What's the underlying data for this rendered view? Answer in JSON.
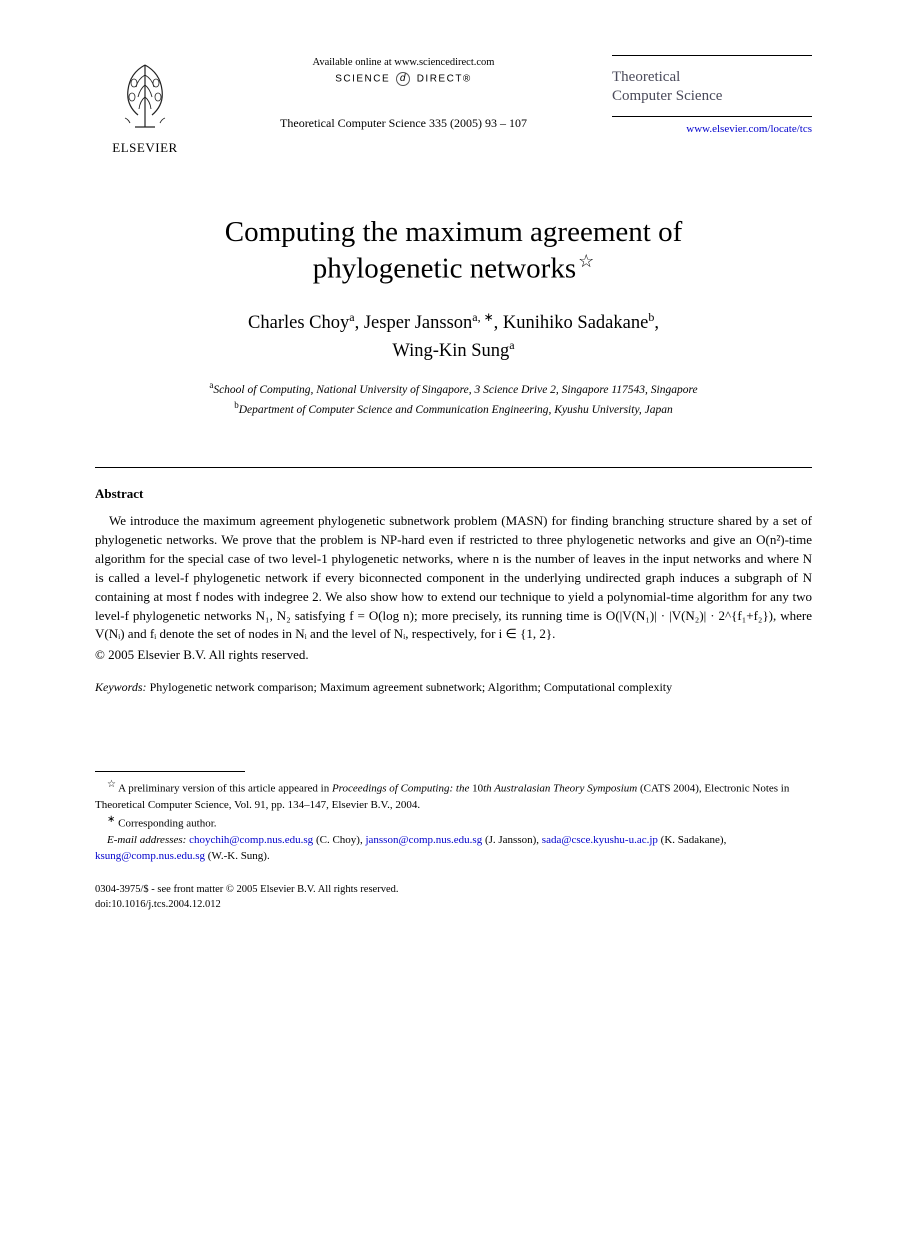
{
  "header": {
    "elsevier_label": "ELSEVIER",
    "available_line": "Available online at www.sciencedirect.com",
    "sciencedirect_left": "SCIENCE",
    "sciencedirect_right": "DIRECT®",
    "journal_ref": "Theoretical Computer Science 335 (2005) 93 – 107",
    "journal_name_line1": "Theoretical",
    "journal_name_line2": "Computer Science",
    "journal_url": "www.elsevier.com/locate/tcs"
  },
  "title": {
    "line1": "Computing the maximum agreement of",
    "line2": "phylogenetic networks",
    "star": "☆"
  },
  "authors": {
    "a1_name": "Charles Choy",
    "a1_sup": "a",
    "a2_name": "Jesper Jansson",
    "a2_sup": "a, ∗",
    "a3_name": "Kunihiko Sadakane",
    "a3_sup": "b",
    "a4_name": "Wing-Kin Sung",
    "a4_sup": "a"
  },
  "affiliations": {
    "a_sup": "a",
    "a_text": "School of Computing, National University of Singapore, 3 Science Drive 2, Singapore 117543, Singapore",
    "b_sup": "b",
    "b_text": "Department of Computer Science and Communication Engineering, Kyushu University, Japan"
  },
  "abstract": {
    "heading": "Abstract",
    "body_html": "We introduce the maximum agreement phylogenetic subnetwork problem (MASN) for finding branching structure shared by a set of phylogenetic networks. We prove that the problem is NP-hard even if restricted to three phylogenetic networks and give an O(n²)-time algorithm for the special case of two level-1 phylogenetic networks, where n is the number of leaves in the input networks and where N is called a level-f phylogenetic network if every biconnected component in the underlying undirected graph induces a subgraph of N containing at most f nodes with indegree 2. We also show how to extend our technique to yield a polynomial-time algorithm for any two level-f phylogenetic networks N₁, N₂ satisfying f = O(log n); more precisely, its running time is O(|V(N₁)| · |V(N₂)| · 2^{f₁+f₂}), where V(Nᵢ) and fᵢ denote the set of nodes in Nᵢ and the level of Nᵢ, respectively, for i ∈ {1, 2}.",
    "copyright": "© 2005 Elsevier B.V. All rights reserved."
  },
  "keywords": {
    "label": "Keywords:",
    "text": "Phylogenetic network comparison; Maximum agreement subnetwork; Algorithm; Computational complexity"
  },
  "footnotes": {
    "star_note_html": "A preliminary version of this article appeared in <i>Proceedings of Computing: the</i> 10<i>th Australasian Theory Symposium</i> (CATS 2004), Electronic Notes in Theoretical Computer Science, Vol. 91, pp. 134–147, Elsevier B.V., 2004.",
    "corr": "Corresponding author.",
    "email_label": "E-mail addresses:",
    "emails": [
      {
        "addr": "choychih@comp.nus.edu.sg",
        "who": "(C. Choy)"
      },
      {
        "addr": "jansson@comp.nus.edu.sg",
        "who": "(J. Jansson)"
      },
      {
        "addr": "sada@csce.kyushu-u.ac.jp",
        "who": "(K. Sadakane)"
      },
      {
        "addr": "ksung@comp.nus.edu.sg",
        "who": "(W.-K. Sung)"
      }
    ]
  },
  "bottom": {
    "issn_line": "0304-3975/$ - see front matter © 2005 Elsevier B.V. All rights reserved.",
    "doi_line": "doi:10.1016/j.tcs.2004.12.012"
  },
  "colors": {
    "link": "#0000cc",
    "text": "#000000",
    "journal_name": "#4a4a5a"
  }
}
